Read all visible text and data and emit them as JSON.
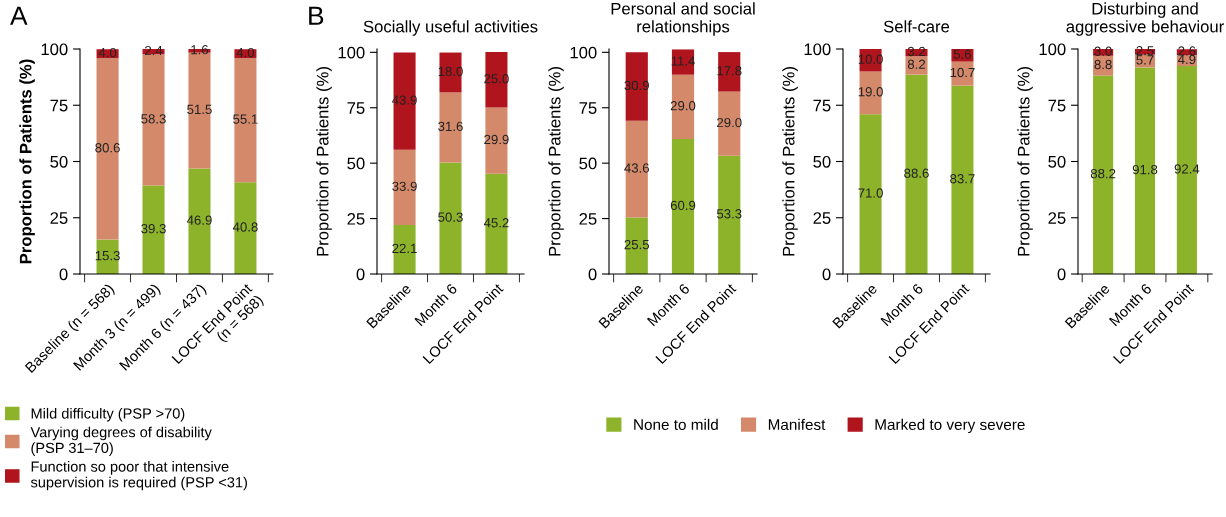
{
  "chart_data": [
    {
      "type": "bar",
      "stacked": true,
      "annotations": [
        "A"
      ],
      "ylabel": "Proportion of Patients (%)",
      "categories": [
        "Baseline (n = 568)",
        "Month 3 (n = 499)",
        "Month 6 (n = 437)",
        "LOCF End Point\n(n = 568)"
      ],
      "series": [
        {
          "name": "Mild difficulty (PSP >70)",
          "color": "#8db32a",
          "values": [
            15.3,
            39.3,
            46.9,
            40.8
          ],
          "value_labels": [
            "15.3",
            "39.3",
            "46.9",
            "40.8"
          ]
        },
        {
          "name": "Varying degrees of disability\n(PSP 31–70)",
          "color": "#d4896a",
          "values": [
            80.6,
            58.3,
            51.5,
            55.1
          ],
          "value_labels": [
            "80.6",
            "58.3",
            "51.5",
            "55.1"
          ]
        },
        {
          "name": "Function so poor that intensive\nsupervision is required (PSP <31)",
          "color": "#b0141c",
          "values": [
            4.0,
            2.4,
            1.6,
            4.0
          ],
          "value_labels": [
            "4.0",
            "2.4",
            "1.6",
            "4.0"
          ]
        }
      ],
      "ylim": [
        0,
        100
      ],
      "yticks": [
        0,
        25,
        50,
        75,
        100
      ],
      "legend": "bottom left"
    },
    {
      "type": "bar",
      "stacked": true,
      "annotations": [
        "B"
      ],
      "title": "Socially useful activities",
      "ylabel": "Proportion of Patients (%)",
      "categories": [
        "Baseline",
        "Month 6",
        "LOCF End Point"
      ],
      "series": [
        {
          "color": "#8db32a",
          "values": [
            22.1,
            50.3,
            45.2
          ],
          "value_labels": [
            "22.1",
            "50.3",
            "45.2"
          ]
        },
        {
          "color": "#d4896a",
          "values": [
            33.9,
            31.6,
            29.9
          ],
          "value_labels": [
            "33.9",
            "31.6",
            "29.9"
          ]
        },
        {
          "color": "#b0141c",
          "values": [
            43.9,
            18.0,
            25.0
          ],
          "value_labels": [
            "43.9",
            "18.0",
            "25.0"
          ]
        }
      ],
      "ylim": [
        0,
        101.5
      ],
      "yticks": [
        0,
        25,
        50,
        75,
        100
      ]
    },
    {
      "type": "bar",
      "stacked": true,
      "title": "Personal and social\nrelationships",
      "ylabel": "Proportion of Patients (%)",
      "categories": [
        "Baseline",
        "Month 6",
        "LOCF End Point"
      ],
      "series": [
        {
          "name": "None to mild",
          "color": "#8db32a",
          "values": [
            25.5,
            60.9,
            53.3
          ],
          "value_labels": [
            "25.5",
            "60.9",
            "53.3"
          ]
        },
        {
          "name": "Manifest",
          "color": "#d4896a",
          "values": [
            43.6,
            29.0,
            29.0
          ],
          "value_labels": [
            "43.6",
            "29.0",
            "29.0"
          ]
        },
        {
          "name": "Marked to very severe",
          "color": "#b0141c",
          "values": [
            30.9,
            11.4,
            17.8
          ],
          "value_labels": [
            "30.9",
            "11.4",
            "17.8"
          ]
        }
      ],
      "ylim": [
        0,
        101.5
      ],
      "yticks": [
        0,
        25,
        50,
        75,
        100
      ],
      "legend": "bottom"
    },
    {
      "type": "bar",
      "stacked": true,
      "title": "Self-care",
      "ylabel": "Proportion of Patients (%)",
      "categories": [
        "Baseline",
        "Month 6",
        "LOCF End Point"
      ],
      "series": [
        {
          "color": "#8db32a",
          "values": [
            71.0,
            88.6,
            83.7
          ],
          "value_labels": [
            "71.0",
            "88.6",
            "83.7"
          ]
        },
        {
          "color": "#d4896a",
          "values": [
            19.0,
            8.2,
            10.7
          ],
          "value_labels": [
            "19.0",
            "8.2",
            "10.7"
          ]
        },
        {
          "color": "#b0141c",
          "values": [
            10.0,
            3.2,
            5.6
          ],
          "value_labels": [
            "10.0",
            "3.2",
            "5.6"
          ]
        }
      ],
      "ylim": [
        0,
        100
      ],
      "yticks": [
        0,
        25,
        50,
        75,
        100
      ]
    },
    {
      "type": "bar",
      "stacked": true,
      "title": "Disturbing and\naggressive behaviour",
      "ylabel": "Proportion of Patients (%)",
      "categories": [
        "Baseline",
        "Month 6",
        "LOCF End Point"
      ],
      "series": [
        {
          "color": "#8db32a",
          "values": [
            88.2,
            91.8,
            92.4
          ],
          "value_labels": [
            "88.2",
            "91.8",
            "92.4"
          ]
        },
        {
          "color": "#d4896a",
          "values": [
            8.8,
            5.7,
            4.9
          ],
          "value_labels": [
            "8.8",
            "5.7",
            "4.9"
          ]
        },
        {
          "color": "#b0141c",
          "values": [
            3.0,
            2.5,
            2.6
          ],
          "value_labels": [
            "3.0",
            "2.5",
            "2.6"
          ]
        }
      ],
      "ylim": [
        0,
        100
      ],
      "yticks": [
        0,
        25,
        50,
        75,
        100
      ]
    }
  ]
}
